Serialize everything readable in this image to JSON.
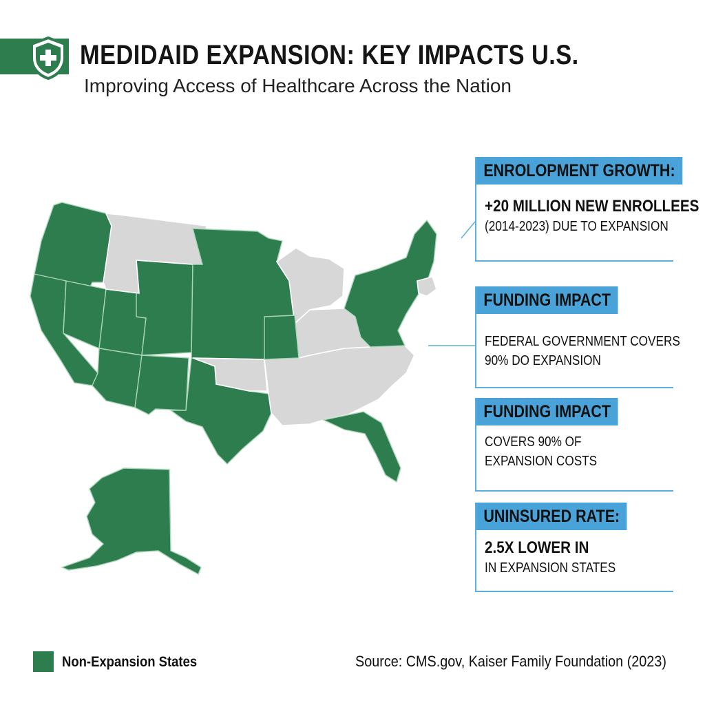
{
  "header": {
    "title": "MEDIDAID EXPANSION: KEY IMPACTS U.S.",
    "subtitle": "Improving Access of Healthcare Across the Nation",
    "badge_icon": "shield-plus-icon"
  },
  "colors": {
    "expansion_green": "#2e7d4f",
    "non_expansion_gray": "#d7d7d7",
    "accent_blue": "#4aa3d8"
  },
  "cards": [
    {
      "heading": "ENROLOPMENT GROWTH:",
      "lines": [
        "+20 MILLION NEW ENROLLEES",
        "(2014-2023) DUE TO EXPANSION"
      ]
    },
    {
      "heading": "FUNDING IMPACT",
      "lines": [
        "FEDERAL GOVERNMENT COVERS",
        "90% DO EXPANSION"
      ]
    },
    {
      "heading": "FUNDING IMPACT",
      "lines": [
        "COVERS 90% OF",
        "EXPANSION COSTS"
      ]
    },
    {
      "heading": "UNINSURED RATE:",
      "lines": [
        "2.5X LOWER IN",
        "IN EXPANSION STATES"
      ]
    }
  ],
  "legend": {
    "label": "Non-Expansion States"
  },
  "source": "Source: CMS.gov, Kaiser Family Foundation (2023)"
}
